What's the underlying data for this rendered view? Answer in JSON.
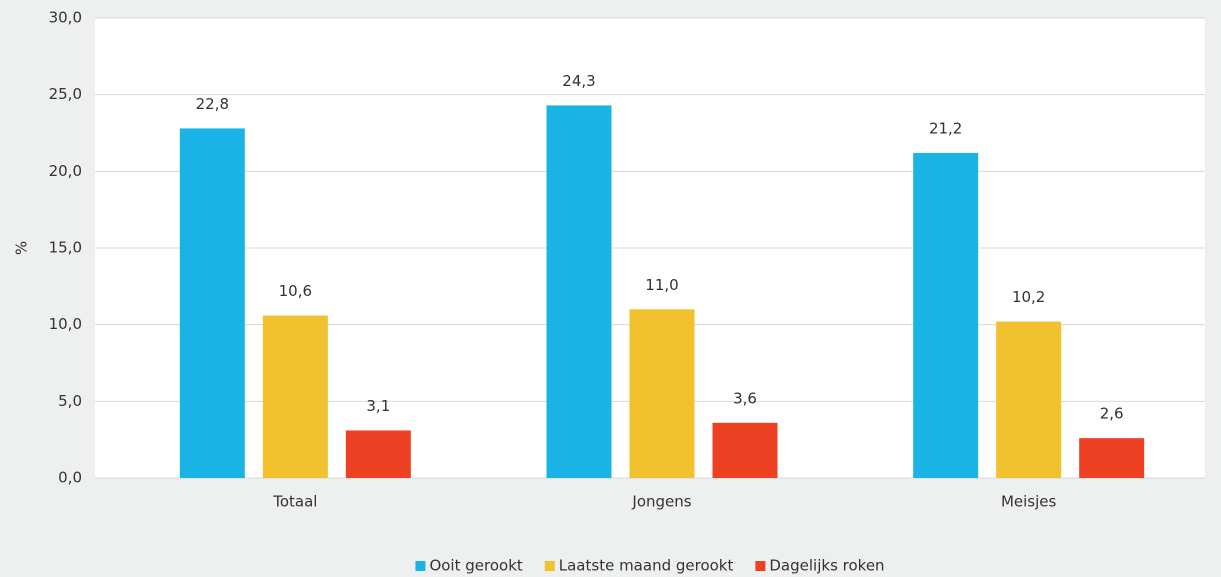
{
  "chart_data": {
    "type": "bar",
    "y_label": "%",
    "categories": [
      "Totaal",
      "Jongens",
      "Meisjes"
    ],
    "series": [
      {
        "name": "Ooit gerookt",
        "color": "#1ab3e6",
        "values": [
          22.8,
          24.3,
          21.2
        ],
        "value_labels": [
          "22,8",
          "24,3",
          "21,2"
        ]
      },
      {
        "name": "Laatste maand gerookt",
        "color": "#f2c12e",
        "values": [
          10.6,
          11.0,
          10.2
        ],
        "value_labels": [
          "10,6",
          "11,0",
          "10,2"
        ]
      },
      {
        "name": "Dagelijks roken",
        "color": "#ee4023",
        "values": [
          3.1,
          3.6,
          2.6
        ],
        "value_labels": [
          "3,1",
          "3,6",
          "2,6"
        ]
      }
    ],
    "ylim": [
      0,
      30
    ],
    "yticks": [
      {
        "value": 0,
        "label": "0,0"
      },
      {
        "value": 5,
        "label": "5,0"
      },
      {
        "value": 10,
        "label": "10,0"
      },
      {
        "value": 15,
        "label": "15,0"
      },
      {
        "value": 20,
        "label": "20,0"
      },
      {
        "value": 25,
        "label": "25,0"
      },
      {
        "value": 30,
        "label": "30,0"
      }
    ],
    "grid": true,
    "legend": "bottom"
  }
}
